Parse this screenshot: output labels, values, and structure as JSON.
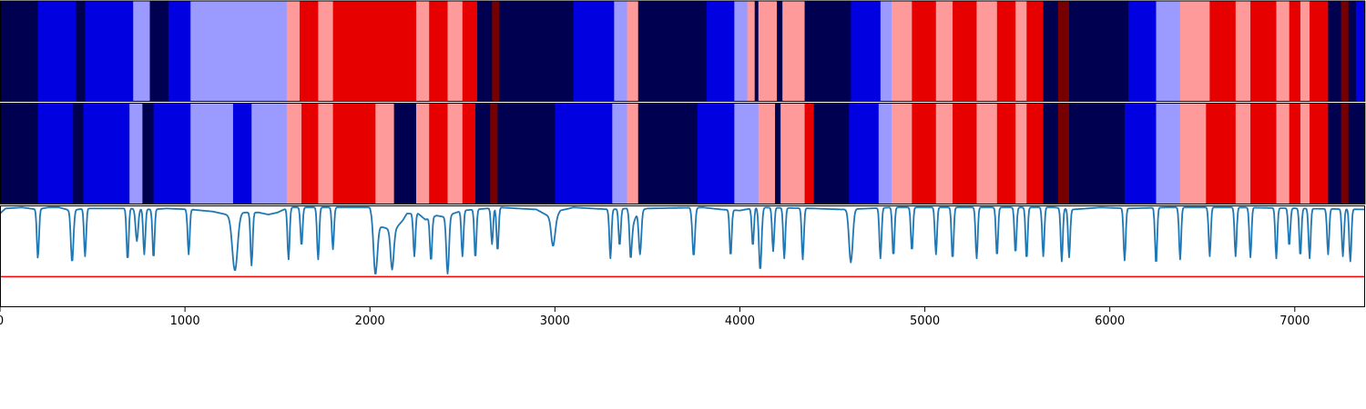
{
  "colors": {
    "S": "#000050",
    "B": "#0000e0",
    "L": "#9a9aff",
    "P": "#ff9a9a",
    "R": "#e60000",
    "D": "#760000",
    "line": "#1f77b4",
    "threshold": "#ff0000",
    "axis": "#000000"
  },
  "chart_data": [
    {
      "type": "heatmap",
      "panel": "track-top",
      "xlim": [
        0,
        7380
      ],
      "segments": [
        [
          0,
          205,
          "S"
        ],
        [
          205,
          410,
          "B"
        ],
        [
          410,
          460,
          "S"
        ],
        [
          460,
          720,
          "B"
        ],
        [
          720,
          810,
          "L"
        ],
        [
          810,
          910,
          "S"
        ],
        [
          910,
          1030,
          "B"
        ],
        [
          1030,
          1550,
          "L"
        ],
        [
          1550,
          1620,
          "P"
        ],
        [
          1620,
          1720,
          "R"
        ],
        [
          1720,
          1800,
          "P"
        ],
        [
          1800,
          2250,
          "R"
        ],
        [
          2250,
          2320,
          "P"
        ],
        [
          2320,
          2420,
          "R"
        ],
        [
          2420,
          2500,
          "P"
        ],
        [
          2500,
          2580,
          "R"
        ],
        [
          2580,
          2660,
          "S"
        ],
        [
          2660,
          2700,
          "D"
        ],
        [
          2700,
          3100,
          "S"
        ],
        [
          3100,
          3320,
          "B"
        ],
        [
          3320,
          3390,
          "L"
        ],
        [
          3390,
          3450,
          "P"
        ],
        [
          3450,
          3820,
          "S"
        ],
        [
          3820,
          3970,
          "B"
        ],
        [
          3970,
          4040,
          "L"
        ],
        [
          4040,
          4080,
          "P"
        ],
        [
          4080,
          4100,
          "S"
        ],
        [
          4100,
          4200,
          "P"
        ],
        [
          4200,
          4230,
          "S"
        ],
        [
          4230,
          4350,
          "P"
        ],
        [
          4350,
          4600,
          "S"
        ],
        [
          4600,
          4760,
          "B"
        ],
        [
          4760,
          4820,
          "L"
        ],
        [
          4820,
          4930,
          "P"
        ],
        [
          4930,
          5060,
          "R"
        ],
        [
          5060,
          5150,
          "P"
        ],
        [
          5150,
          5280,
          "R"
        ],
        [
          5280,
          5390,
          "P"
        ],
        [
          5390,
          5490,
          "R"
        ],
        [
          5490,
          5550,
          "P"
        ],
        [
          5550,
          5640,
          "R"
        ],
        [
          5640,
          5720,
          "S"
        ],
        [
          5720,
          5780,
          "D"
        ],
        [
          5780,
          6100,
          "S"
        ],
        [
          6100,
          6250,
          "B"
        ],
        [
          6250,
          6380,
          "L"
        ],
        [
          6380,
          6540,
          "P"
        ],
        [
          6540,
          6680,
          "R"
        ],
        [
          6680,
          6760,
          "P"
        ],
        [
          6760,
          6900,
          "R"
        ],
        [
          6900,
          6970,
          "P"
        ],
        [
          6970,
          7030,
          "R"
        ],
        [
          7030,
          7080,
          "P"
        ],
        [
          7080,
          7180,
          "R"
        ],
        [
          7180,
          7250,
          "S"
        ],
        [
          7250,
          7290,
          "D"
        ],
        [
          7290,
          7330,
          "S"
        ],
        [
          7330,
          7380,
          "B"
        ]
      ]
    },
    {
      "type": "heatmap",
      "panel": "track-middle",
      "xlim": [
        0,
        7380
      ],
      "segments": [
        [
          0,
          205,
          "S"
        ],
        [
          205,
          395,
          "B"
        ],
        [
          395,
          450,
          "S"
        ],
        [
          450,
          700,
          "B"
        ],
        [
          700,
          770,
          "L"
        ],
        [
          770,
          830,
          "S"
        ],
        [
          830,
          1030,
          "B"
        ],
        [
          1030,
          1260,
          "L"
        ],
        [
          1260,
          1360,
          "B"
        ],
        [
          1360,
          1550,
          "L"
        ],
        [
          1550,
          1630,
          "P"
        ],
        [
          1630,
          1720,
          "R"
        ],
        [
          1720,
          1800,
          "P"
        ],
        [
          1800,
          2030,
          "R"
        ],
        [
          2030,
          2130,
          "P"
        ],
        [
          2130,
          2250,
          "S"
        ],
        [
          2250,
          2320,
          "P"
        ],
        [
          2320,
          2420,
          "R"
        ],
        [
          2420,
          2500,
          "P"
        ],
        [
          2500,
          2570,
          "R"
        ],
        [
          2570,
          2650,
          "S"
        ],
        [
          2650,
          2690,
          "D"
        ],
        [
          2690,
          3000,
          "S"
        ],
        [
          3000,
          3310,
          "B"
        ],
        [
          3310,
          3390,
          "L"
        ],
        [
          3390,
          3450,
          "P"
        ],
        [
          3450,
          3770,
          "S"
        ],
        [
          3770,
          3970,
          "B"
        ],
        [
          3970,
          4100,
          "L"
        ],
        [
          4100,
          4190,
          "P"
        ],
        [
          4190,
          4220,
          "S"
        ],
        [
          4220,
          4350,
          "P"
        ],
        [
          4350,
          4400,
          "R"
        ],
        [
          4400,
          4590,
          "S"
        ],
        [
          4590,
          4750,
          "B"
        ],
        [
          4750,
          4820,
          "L"
        ],
        [
          4820,
          4930,
          "P"
        ],
        [
          4930,
          5060,
          "R"
        ],
        [
          5060,
          5150,
          "P"
        ],
        [
          5150,
          5280,
          "R"
        ],
        [
          5280,
          5390,
          "P"
        ],
        [
          5390,
          5490,
          "R"
        ],
        [
          5490,
          5550,
          "P"
        ],
        [
          5550,
          5640,
          "R"
        ],
        [
          5640,
          5720,
          "S"
        ],
        [
          5720,
          5780,
          "D"
        ],
        [
          5780,
          6080,
          "S"
        ],
        [
          6080,
          6250,
          "B"
        ],
        [
          6250,
          6380,
          "L"
        ],
        [
          6380,
          6520,
          "P"
        ],
        [
          6520,
          6680,
          "R"
        ],
        [
          6680,
          6760,
          "P"
        ],
        [
          6760,
          6900,
          "R"
        ],
        [
          6900,
          6970,
          "P"
        ],
        [
          6970,
          7030,
          "R"
        ],
        [
          7030,
          7080,
          "P"
        ],
        [
          7080,
          7180,
          "R"
        ],
        [
          7180,
          7250,
          "S"
        ],
        [
          7250,
          7290,
          "D"
        ],
        [
          7290,
          7380,
          "S"
        ]
      ]
    },
    {
      "type": "line",
      "panel": "signal",
      "xlim": [
        0,
        7380
      ],
      "ylim": [
        0,
        1
      ],
      "grid": false,
      "threshold": 0.3,
      "series": [
        {
          "baseline": [
            [
              0,
              0.92
            ],
            [
              30,
              0.97
            ],
            [
              120,
              0.98
            ],
            [
              200,
              0.96
            ],
            [
              260,
              0.98
            ],
            [
              320,
              0.98
            ],
            [
              380,
              0.95
            ],
            [
              460,
              0.97
            ],
            [
              700,
              0.97
            ],
            [
              820,
              0.96
            ],
            [
              900,
              0.97
            ],
            [
              1030,
              0.96
            ],
            [
              1150,
              0.94
            ],
            [
              1250,
              0.9
            ],
            [
              1300,
              0.93
            ],
            [
              1400,
              0.93
            ],
            [
              1450,
              0.91
            ],
            [
              1500,
              0.93
            ],
            [
              1560,
              0.98
            ],
            [
              2000,
              0.98
            ],
            [
              2040,
              0.8
            ],
            [
              2080,
              0.78
            ],
            [
              2130,
              0.75
            ],
            [
              2180,
              0.86
            ],
            [
              2200,
              0.92
            ],
            [
              2260,
              0.92
            ],
            [
              2300,
              0.86
            ],
            [
              2360,
              0.9
            ],
            [
              2420,
              0.88
            ],
            [
              2450,
              0.92
            ],
            [
              2500,
              0.95
            ],
            [
              2700,
              0.98
            ],
            [
              2900,
              0.96
            ],
            [
              3000,
              0.86
            ],
            [
              3030,
              0.95
            ],
            [
              3100,
              0.98
            ],
            [
              3300,
              0.96
            ],
            [
              3390,
              0.97
            ],
            [
              3420,
              0.8
            ],
            [
              3450,
              0.95
            ],
            [
              3500,
              0.97
            ],
            [
              3800,
              0.98
            ],
            [
              3900,
              0.96
            ],
            [
              4000,
              0.95
            ],
            [
              4090,
              0.98
            ],
            [
              4400,
              0.97
            ],
            [
              4550,
              0.96
            ],
            [
              4700,
              0.97
            ],
            [
              4820,
              0.98
            ],
            [
              5700,
              0.98
            ],
            [
              5800,
              0.96
            ],
            [
              5950,
              0.98
            ],
            [
              6100,
              0.97
            ],
            [
              6300,
              0.98
            ],
            [
              6700,
              0.98
            ],
            [
              7380,
              0.96
            ]
          ],
          "dips": [
            [
              205,
              0.48,
              8
            ],
            [
              390,
              0.44,
              10
            ],
            [
              460,
              0.5,
              8
            ],
            [
              690,
              0.46,
              8
            ],
            [
              740,
              0.65,
              10
            ],
            [
              780,
              0.52,
              8
            ],
            [
              830,
              0.48,
              8
            ],
            [
              1020,
              0.52,
              8
            ],
            [
              1270,
              0.36,
              20
            ],
            [
              1360,
              0.41,
              8
            ],
            [
              1560,
              0.47,
              8
            ],
            [
              1630,
              0.6,
              8
            ],
            [
              1720,
              0.47,
              8
            ],
            [
              1800,
              0.57,
              8
            ],
            [
              2030,
              0.32,
              14
            ],
            [
              2120,
              0.37,
              12
            ],
            [
              2240,
              0.5,
              8
            ],
            [
              2330,
              0.45,
              8
            ],
            [
              2420,
              0.33,
              10
            ],
            [
              2500,
              0.5,
              8
            ],
            [
              2570,
              0.48,
              8
            ],
            [
              2660,
              0.62,
              8
            ],
            [
              2690,
              0.55,
              8
            ],
            [
              2990,
              0.6,
              14
            ],
            [
              3300,
              0.48,
              8
            ],
            [
              3350,
              0.6,
              8
            ],
            [
              3410,
              0.47,
              8
            ],
            [
              3460,
              0.52,
              10
            ],
            [
              3750,
              0.5,
              10
            ],
            [
              3950,
              0.5,
              8
            ],
            [
              4070,
              0.6,
              8
            ],
            [
              4110,
              0.36,
              10
            ],
            [
              4180,
              0.55,
              8
            ],
            [
              4240,
              0.48,
              8
            ],
            [
              4340,
              0.47,
              8
            ],
            [
              4600,
              0.44,
              14
            ],
            [
              4760,
              0.48,
              8
            ],
            [
              4830,
              0.5,
              8
            ],
            [
              4930,
              0.55,
              8
            ],
            [
              5060,
              0.52,
              8
            ],
            [
              5150,
              0.47,
              8
            ],
            [
              5280,
              0.48,
              8
            ],
            [
              5390,
              0.5,
              8
            ],
            [
              5490,
              0.53,
              8
            ],
            [
              5550,
              0.47,
              8
            ],
            [
              5640,
              0.5,
              8
            ],
            [
              5740,
              0.45,
              8
            ],
            [
              5780,
              0.49,
              8
            ],
            [
              6080,
              0.46,
              8
            ],
            [
              6250,
              0.42,
              8
            ],
            [
              6380,
              0.47,
              8
            ],
            [
              6540,
              0.5,
              8
            ],
            [
              6680,
              0.5,
              8
            ],
            [
              6760,
              0.49,
              8
            ],
            [
              6900,
              0.48,
              8
            ],
            [
              6970,
              0.6,
              8
            ],
            [
              7030,
              0.5,
              8
            ],
            [
              7080,
              0.48,
              8
            ],
            [
              7180,
              0.52,
              8
            ],
            [
              7260,
              0.5,
              8
            ],
            [
              7300,
              0.45,
              8
            ]
          ]
        }
      ],
      "x_ticks": [
        0,
        1000,
        2000,
        3000,
        4000,
        5000,
        6000,
        7000
      ],
      "x_tick_labels": [
        "0",
        "1000",
        "2000",
        "3000",
        "4000",
        "5000",
        "6000",
        "7000"
      ]
    }
  ]
}
